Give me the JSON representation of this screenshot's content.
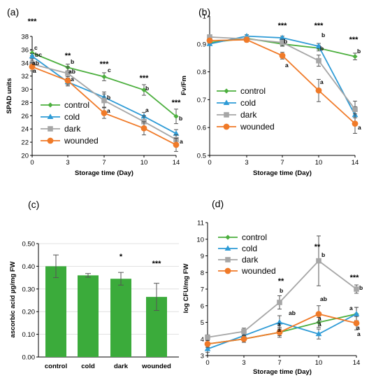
{
  "chart_data": [
    {
      "panel": "(a)",
      "type": "line",
      "xlabel": "Storage time (Day)",
      "ylabel": "SPAD units",
      "x": [
        0,
        3,
        7,
        10,
        14
      ],
      "x_ticks": [
        "0",
        "3",
        "7",
        "10",
        "14"
      ],
      "ylim": [
        20,
        38
      ],
      "y_ticks": [
        "20",
        "22",
        "24",
        "26",
        "28",
        "30",
        "32",
        "34",
        "36",
        "38"
      ],
      "legend_position": "bottom-left",
      "series": [
        {
          "name": "control",
          "values": [
            35.5,
            33.3,
            31.9,
            29.9,
            25.9
          ],
          "errors": [
            0.4,
            0.5,
            0.6,
            0.8,
            1.1
          ],
          "color": "#4caf3e",
          "marker": "diamond"
        },
        {
          "name": "cold",
          "values": [
            35.0,
            31.1,
            28.8,
            25.9,
            23.3
          ],
          "errors": [
            0.4,
            0.6,
            0.8,
            0.6,
            0.6
          ],
          "color": "#2e9bd6",
          "marker": "triangle"
        },
        {
          "name": "dark",
          "values": [
            33.8,
            32.4,
            28.3,
            25.1,
            22.4
          ],
          "errors": [
            0.5,
            1.0,
            1.0,
            0.9,
            0.7
          ],
          "color": "#a6a6a6",
          "marker": "square"
        },
        {
          "name": "wounded",
          "values": [
            33.4,
            31.3,
            26.4,
            24.1,
            21.6
          ],
          "errors": [
            0.6,
            0.6,
            0.8,
            1.0,
            1.0
          ],
          "color": "#f07a28",
          "marker": "circle"
        }
      ],
      "significance": [
        "***",
        "**",
        "***",
        "***",
        "***"
      ],
      "letters": [
        {
          "x": 0,
          "labels": [
            "c",
            "bc",
            "ab",
            "a"
          ]
        },
        {
          "x": 3,
          "labels": [
            "b",
            "ab",
            "a"
          ]
        },
        {
          "x": 7,
          "labels": [
            "c",
            "b",
            "a"
          ]
        },
        {
          "x": 10,
          "labels": [
            "b",
            "a"
          ]
        },
        {
          "x": 14,
          "labels": [
            "b",
            "a"
          ]
        }
      ]
    },
    {
      "panel": "(b)",
      "type": "line",
      "xlabel": "Storage time (Day)",
      "ylabel": "Fv/Fm",
      "x": [
        0,
        3,
        7,
        10,
        14
      ],
      "x_ticks": [
        "0",
        "3",
        "7",
        "10",
        "14"
      ],
      "ylim": [
        0.5,
        1.0
      ],
      "y_ticks": [
        "0.5",
        "0.6",
        "0.7",
        "0.8",
        "0.9",
        "1"
      ],
      "legend_position": "bottom-left",
      "series": [
        {
          "name": "control",
          "values": [
            0.905,
            0.92,
            0.9,
            0.885,
            0.855
          ],
          "errors": [
            0.005,
            0.006,
            0.008,
            0.01,
            0.012
          ],
          "color": "#4caf3e",
          "marker": "diamond"
        },
        {
          "name": "cold",
          "values": [
            0.9,
            0.928,
            0.922,
            0.892,
            0.645
          ],
          "errors": [
            0.005,
            0.005,
            0.006,
            0.01,
            0.03
          ],
          "color": "#2e9bd6",
          "marker": "triangle"
        },
        {
          "name": "dark",
          "values": [
            0.925,
            0.918,
            0.905,
            0.84,
            0.665
          ],
          "errors": [
            0.006,
            0.007,
            0.012,
            0.02,
            0.03
          ],
          "color": "#a6a6a6",
          "marker": "square"
        },
        {
          "name": "wounded",
          "values": [
            0.912,
            0.915,
            0.858,
            0.733,
            0.614
          ],
          "errors": [
            0.008,
            0.008,
            0.012,
            0.04,
            0.035
          ],
          "color": "#f07a28",
          "marker": "circle"
        }
      ],
      "significance": [
        "",
        "",
        "***",
        "***",
        "***"
      ],
      "letters": [
        {
          "x": 7,
          "labels": [
            "b",
            "a"
          ]
        },
        {
          "x": 10,
          "labels": [
            "b",
            "b",
            "a"
          ]
        },
        {
          "x": 14,
          "labels": [
            "b",
            "a"
          ]
        }
      ]
    },
    {
      "panel": "(c)",
      "type": "bar",
      "xlabel": "",
      "ylabel": "ascorbic acid µg/mg FW",
      "categories": [
        "control",
        "cold",
        "dark",
        "wounded"
      ],
      "values": [
        0.4,
        0.36,
        0.345,
        0.265
      ],
      "errors": [
        0.05,
        0.008,
        0.028,
        0.06
      ],
      "ylim": [
        0.0,
        0.5
      ],
      "y_ticks": [
        "0.00",
        "0.10",
        "0.20",
        "0.30",
        "0.40",
        "0.50"
      ],
      "color": "#3bab3b",
      "grid": true,
      "significance": [
        "",
        "",
        "*",
        "***"
      ]
    },
    {
      "panel": "(d)",
      "type": "line",
      "xlabel": "Storage time (Day)",
      "ylabel": "log CFU/mg FW",
      "x": [
        0,
        3,
        7,
        10,
        14
      ],
      "x_ticks": [
        "0",
        "3",
        "7",
        "10",
        "14"
      ],
      "ylim": [
        3,
        11
      ],
      "y_ticks": [
        "3",
        "4",
        "5",
        "6",
        "7",
        "8",
        "9",
        "10",
        "11"
      ],
      "legend_position": "top-left",
      "series": [
        {
          "name": "control",
          "values": [
            3.7,
            4.0,
            4.4,
            5.0,
            5.5
          ],
          "errors": [
            0.2,
            0.2,
            0.2,
            0.3,
            0.4
          ],
          "color": "#4caf3e",
          "marker": "diamond"
        },
        {
          "name": "cold",
          "values": [
            3.4,
            4.2,
            5.0,
            4.3,
            5.5
          ],
          "errors": [
            0.2,
            0.2,
            0.4,
            0.3,
            0.4
          ],
          "color": "#2e9bd6",
          "marker": "triangle"
        },
        {
          "name": "dark",
          "values": [
            4.1,
            4.45,
            6.2,
            8.7,
            7.0
          ],
          "errors": [
            0.15,
            0.2,
            0.4,
            1.5,
            0.25
          ],
          "color": "#a6a6a6",
          "marker": "square"
        },
        {
          "name": "wounded",
          "values": [
            3.7,
            4.0,
            4.4,
            5.5,
            4.95
          ],
          "errors": [
            0.2,
            0.2,
            0.3,
            0.5,
            0.4
          ],
          "color": "#f07a28",
          "marker": "circle"
        }
      ],
      "significance": [
        "",
        "",
        "**",
        "**",
        "***"
      ],
      "letters": [
        {
          "x": 7,
          "labels": [
            "b",
            "ab",
            "a",
            "a"
          ]
        },
        {
          "x": 10,
          "labels": [
            "b",
            "ab",
            "a",
            "a"
          ]
        },
        {
          "x": 14,
          "labels": [
            "b",
            "a",
            "a",
            "a"
          ]
        }
      ]
    }
  ]
}
